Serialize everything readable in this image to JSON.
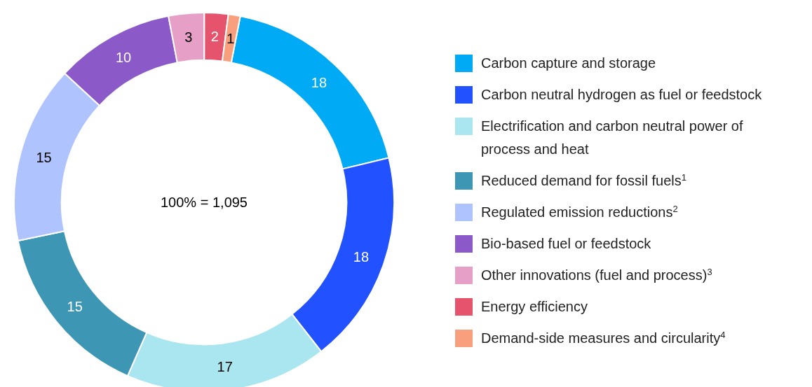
{
  "chart_data": {
    "type": "donut",
    "categories": [
      "Carbon capture and storage",
      "Carbon neutral hydrogen as fuel or feedstock",
      "Electrification and carbon neutral power of process and heat",
      "Reduced demand for fossil fuels$^{1}$",
      "Regulated emission reductions$^{2}$",
      "Bio-based fuel or feedstock",
      "Other innovations (fuel and process)$^{3}$",
      "Energy efficiency",
      "Demand-side measures and circularity$^{4}$"
    ],
    "values": [
      18,
      18,
      17,
      15,
      15,
      10,
      3,
      2,
      1
    ],
    "colors": [
      "#00aaf5",
      "#2251ff",
      "#aae6f0",
      "#3c96b4",
      "#afc3ff",
      "#8c5ac8",
      "#e6a0c8",
      "#e5546c",
      "#f8a07e"
    ],
    "data_labels": true,
    "legend": "right",
    "annotations": [
      "100% = 1,095"
    ]
  }
}
